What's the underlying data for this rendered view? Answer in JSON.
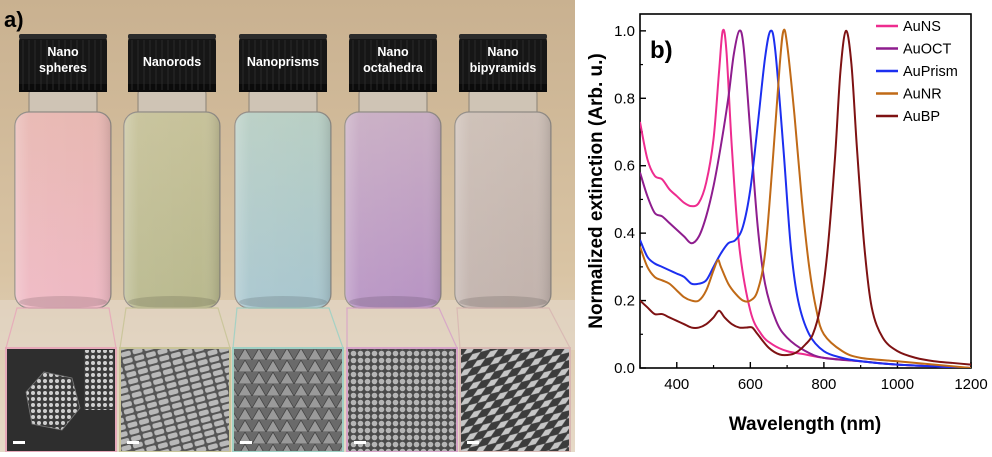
{
  "photo_panel": {
    "panel_label": "a)",
    "vials": [
      {
        "line1": "Nano",
        "line2": "spheres",
        "color_top": "#e8b8b2",
        "color_bottom": "#efb9c4"
      },
      {
        "line1": "Nanorods",
        "line2": "",
        "color_top": "#c7c29a",
        "color_bottom": "#b9b98e"
      },
      {
        "line1": "Nanoprisms",
        "line2": "",
        "color_top": "#b9cfc4",
        "color_bottom": "#a8c6cf"
      },
      {
        "line1": "Nano",
        "line2": "octahedra",
        "color_top": "#c9aec4",
        "color_bottom": "#b894c4"
      },
      {
        "line1": "Nano",
        "line2": "bipyramids",
        "color_top": "#cdbfb6",
        "color_bottom": "#c2b3ad"
      }
    ],
    "sem_images": [
      {
        "name": "spheres",
        "border_color": "#e7a9b9"
      },
      {
        "name": "rods",
        "border_color": "#c9c498"
      },
      {
        "name": "prisms",
        "border_color": "#9fd0c4"
      },
      {
        "name": "octahedra",
        "border_color": "#d7a3c8"
      },
      {
        "name": "bipyramids",
        "border_color": "#d8b7b3"
      }
    ]
  },
  "chart_data": {
    "type": "line",
    "panel_label": "b)",
    "xlabel": "Wavelength (nm)",
    "ylabel": "Normalized extinction (Arb. u.)",
    "xlim": [
      300,
      1200
    ],
    "ylim": [
      0,
      1.05
    ],
    "xticks": [
      400,
      600,
      800,
      1000,
      1200
    ],
    "yticks": [
      0.0,
      0.2,
      0.4,
      0.6,
      0.8,
      1.0
    ],
    "xtick_labels": [
      "400",
      "600",
      "800",
      "1000",
      "1200"
    ],
    "ytick_labels": [
      "0.0",
      "0.2",
      "0.4",
      "0.6",
      "0.8",
      "1.0"
    ],
    "legend_position": "top-right",
    "series": [
      {
        "name": "AuNS",
        "color": "#ee2c8f",
        "points": [
          [
            300,
            0.73
          ],
          [
            320,
            0.62
          ],
          [
            340,
            0.57
          ],
          [
            360,
            0.56
          ],
          [
            380,
            0.53
          ],
          [
            400,
            0.51
          ],
          [
            420,
            0.49
          ],
          [
            440,
            0.48
          ],
          [
            460,
            0.49
          ],
          [
            480,
            0.55
          ],
          [
            500,
            0.68
          ],
          [
            515,
            0.88
          ],
          [
            525,
            1.0
          ],
          [
            535,
            0.94
          ],
          [
            550,
            0.65
          ],
          [
            570,
            0.36
          ],
          [
            600,
            0.17
          ],
          [
            630,
            0.1
          ],
          [
            660,
            0.07
          ],
          [
            700,
            0.05
          ],
          [
            750,
            0.04
          ],
          [
            800,
            0.03
          ],
          [
            900,
            0.02
          ],
          [
            1000,
            0.01
          ],
          [
            1100,
            0.005
          ],
          [
            1200,
            0.0
          ]
        ]
      },
      {
        "name": "AuOCT",
        "color": "#8e1d8e",
        "points": [
          [
            300,
            0.58
          ],
          [
            320,
            0.51
          ],
          [
            340,
            0.46
          ],
          [
            360,
            0.45
          ],
          [
            380,
            0.43
          ],
          [
            400,
            0.41
          ],
          [
            420,
            0.39
          ],
          [
            440,
            0.37
          ],
          [
            460,
            0.39
          ],
          [
            480,
            0.45
          ],
          [
            500,
            0.54
          ],
          [
            520,
            0.66
          ],
          [
            540,
            0.8
          ],
          [
            555,
            0.93
          ],
          [
            570,
            1.0
          ],
          [
            582,
            0.95
          ],
          [
            600,
            0.7
          ],
          [
            620,
            0.42
          ],
          [
            640,
            0.25
          ],
          [
            670,
            0.14
          ],
          [
            700,
            0.09
          ],
          [
            750,
            0.05
          ],
          [
            800,
            0.03
          ],
          [
            900,
            0.02
          ],
          [
            1000,
            0.01
          ],
          [
            1200,
            0.0
          ]
        ]
      },
      {
        "name": "AuPrism",
        "color": "#1c2ff0",
        "points": [
          [
            300,
            0.38
          ],
          [
            320,
            0.33
          ],
          [
            340,
            0.31
          ],
          [
            360,
            0.3
          ],
          [
            380,
            0.29
          ],
          [
            400,
            0.28
          ],
          [
            420,
            0.27
          ],
          [
            440,
            0.25
          ],
          [
            460,
            0.25
          ],
          [
            480,
            0.26
          ],
          [
            500,
            0.3
          ],
          [
            520,
            0.34
          ],
          [
            540,
            0.37
          ],
          [
            560,
            0.38
          ],
          [
            580,
            0.42
          ],
          [
            600,
            0.53
          ],
          [
            620,
            0.72
          ],
          [
            640,
            0.92
          ],
          [
            655,
            1.0
          ],
          [
            668,
            0.94
          ],
          [
            690,
            0.65
          ],
          [
            710,
            0.36
          ],
          [
            730,
            0.2
          ],
          [
            760,
            0.1
          ],
          [
            800,
            0.05
          ],
          [
            850,
            0.03
          ],
          [
            900,
            0.02
          ],
          [
            1000,
            0.01
          ],
          [
            1200,
            0.0
          ]
        ]
      },
      {
        "name": "AuNR",
        "color": "#c06a17",
        "points": [
          [
            300,
            0.36
          ],
          [
            320,
            0.3
          ],
          [
            340,
            0.27
          ],
          [
            360,
            0.26
          ],
          [
            380,
            0.25
          ],
          [
            400,
            0.23
          ],
          [
            420,
            0.21
          ],
          [
            440,
            0.2
          ],
          [
            460,
            0.2
          ],
          [
            480,
            0.23
          ],
          [
            500,
            0.29
          ],
          [
            512,
            0.32
          ],
          [
            520,
            0.3
          ],
          [
            540,
            0.25
          ],
          [
            560,
            0.22
          ],
          [
            580,
            0.2
          ],
          [
            600,
            0.2
          ],
          [
            620,
            0.23
          ],
          [
            640,
            0.34
          ],
          [
            660,
            0.6
          ],
          [
            680,
            0.9
          ],
          [
            690,
            1.0
          ],
          [
            700,
            0.96
          ],
          [
            720,
            0.75
          ],
          [
            740,
            0.5
          ],
          [
            760,
            0.3
          ],
          [
            780,
            0.17
          ],
          [
            800,
            0.1
          ],
          [
            850,
            0.05
          ],
          [
            900,
            0.03
          ],
          [
            1000,
            0.02
          ],
          [
            1100,
            0.01
          ],
          [
            1200,
            0.0
          ]
        ]
      },
      {
        "name": "AuBP",
        "color": "#7e1213",
        "points": [
          [
            300,
            0.2
          ],
          [
            320,
            0.18
          ],
          [
            340,
            0.16
          ],
          [
            360,
            0.16
          ],
          [
            380,
            0.15
          ],
          [
            400,
            0.14
          ],
          [
            420,
            0.13
          ],
          [
            440,
            0.12
          ],
          [
            460,
            0.12
          ],
          [
            480,
            0.13
          ],
          [
            500,
            0.15
          ],
          [
            515,
            0.17
          ],
          [
            530,
            0.15
          ],
          [
            550,
            0.13
          ],
          [
            570,
            0.12
          ],
          [
            590,
            0.12
          ],
          [
            605,
            0.12
          ],
          [
            620,
            0.1
          ],
          [
            650,
            0.06
          ],
          [
            680,
            0.04
          ],
          [
            710,
            0.04
          ],
          [
            730,
            0.05
          ],
          [
            750,
            0.07
          ],
          [
            770,
            0.1
          ],
          [
            790,
            0.18
          ],
          [
            810,
            0.35
          ],
          [
            830,
            0.62
          ],
          [
            845,
            0.88
          ],
          [
            860,
            1.0
          ],
          [
            875,
            0.9
          ],
          [
            890,
            0.65
          ],
          [
            910,
            0.36
          ],
          [
            930,
            0.18
          ],
          [
            960,
            0.09
          ],
          [
            1000,
            0.05
          ],
          [
            1050,
            0.03
          ],
          [
            1100,
            0.02
          ],
          [
            1150,
            0.015
          ],
          [
            1200,
            0.01
          ]
        ]
      }
    ]
  }
}
